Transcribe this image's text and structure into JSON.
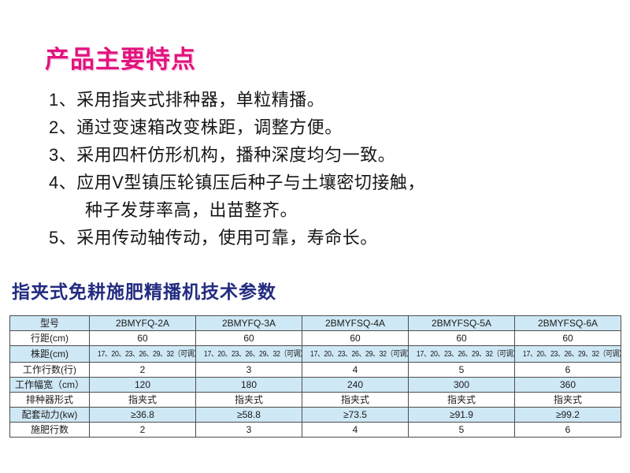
{
  "features": {
    "title": "产品主要特点",
    "lines": [
      "1、采用指夹式排种器，单粒精播。",
      "2、通过变速箱改变株距，调整方便。",
      "3、采用四杆仿形机构，播种深度均匀一致。",
      "4、应用V型镇压轮镇压后种子与土壤密切接触，",
      "种子发芽率高，出苗整齐。",
      "5、采用传动轴传动，使用可靠，寿命长。"
    ]
  },
  "table": {
    "heading": "指夹式免耕施肥精播机技术参数",
    "rows": [
      {
        "label": "型号",
        "values": [
          "2BMYFQ-2A",
          "2BMYFQ-3A",
          "2BMYFSQ-4A",
          "2BMYFSQ-5A",
          "2BMYFSQ-6A"
        ]
      },
      {
        "label": "行距(cm)",
        "values": [
          "60",
          "60",
          "60",
          "60",
          "60"
        ]
      },
      {
        "label": "株距(cm)",
        "values": [
          "17、20、23、26、29、32（可调）",
          "17、20、23、26、29、32（可调）",
          "17、20、23、26、29、32（可调）",
          "17、20、23、26、29、32（可调）",
          "17、20、23、26、29、32（可调）"
        ]
      },
      {
        "label": "工作行数(行)",
        "values": [
          "2",
          "3",
          "4",
          "5",
          "6"
        ]
      },
      {
        "label": "工作幅宽（cm）",
        "values": [
          "120",
          "180",
          "240",
          "300",
          "360"
        ]
      },
      {
        "label": "排种器形式",
        "values": [
          "指夹式",
          "指夹式",
          "指夹式",
          "指夹式",
          "指夹式"
        ]
      },
      {
        "label": "配套动力(kw)",
        "values": [
          "≥36.8",
          "≥58.8",
          "≥73.5",
          "≥91.9",
          "≥99.2"
        ]
      },
      {
        "label": "施肥行数",
        "values": [
          "2",
          "3",
          "4",
          "5",
          "6"
        ]
      }
    ]
  },
  "colors": {
    "title_pink": "#e2127e",
    "heading_blue": "#232c80",
    "row_alt_blue": "#cfe8f6",
    "table_border": "#4d4d4d"
  }
}
